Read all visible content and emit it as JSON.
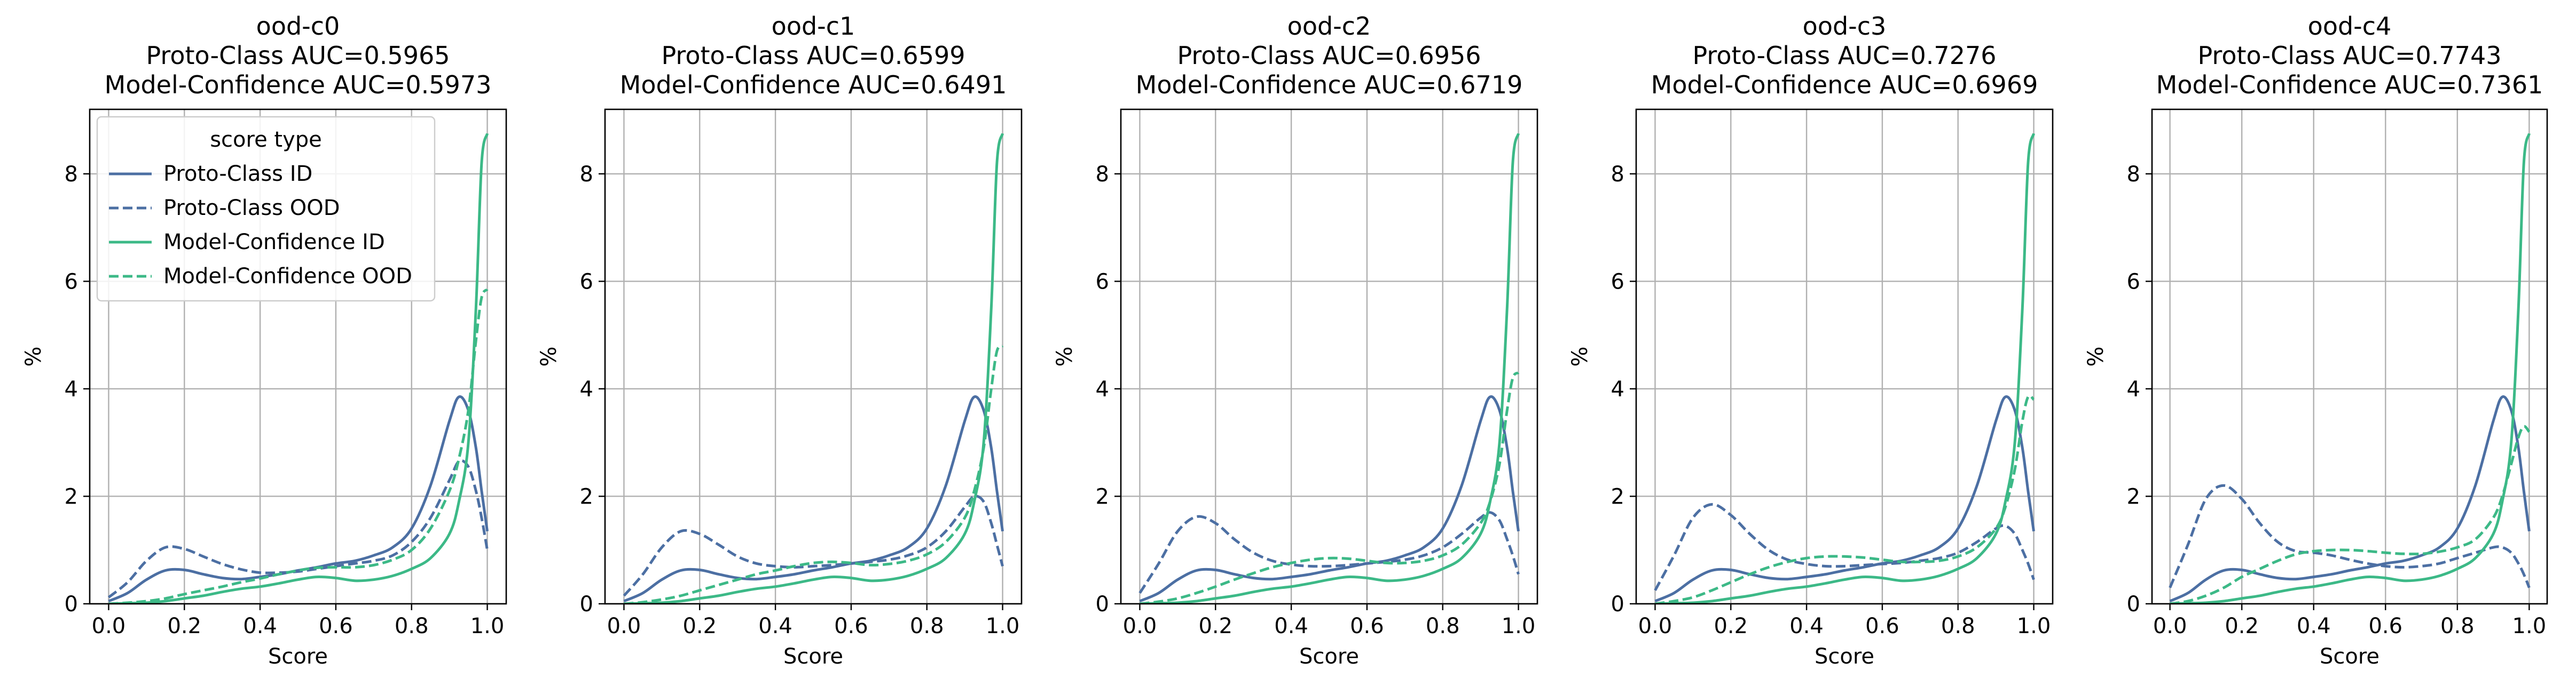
{
  "figure": {
    "legend": {
      "title": "score type",
      "entries": [
        "Proto-Class ID",
        "Proto-Class OOD",
        "Model-Confidence ID",
        "Model-Confidence OOD"
      ]
    }
  },
  "chart_data": [
    {
      "type": "line",
      "title": "ood-c0\nProto-Class AUC=0.5965\nModel-Confidence AUC=0.5973",
      "xlabel": "Score",
      "ylabel": "%",
      "xlim": [
        -0.05,
        1.05
      ],
      "ylim": [
        0,
        9.2
      ],
      "xticks": [
        "0.0",
        "0.2",
        "0.4",
        "0.6",
        "0.8",
        "1.0"
      ],
      "yticks": [
        "0",
        "2",
        "4",
        "6",
        "8"
      ],
      "grid": true,
      "legend": "upper-left",
      "x": [
        0.0,
        0.05,
        0.1,
        0.15,
        0.2,
        0.25,
        0.3,
        0.35,
        0.4,
        0.45,
        0.5,
        0.55,
        0.6,
        0.65,
        0.7,
        0.75,
        0.8,
        0.85,
        0.9,
        0.925,
        0.95,
        0.97,
        0.985,
        1.0
      ],
      "series": [
        {
          "name": "Proto-Class ID",
          "color": "#4c6fa3",
          "dash": "solid",
          "values": [
            0.05,
            0.2,
            0.45,
            0.62,
            0.63,
            0.55,
            0.48,
            0.46,
            0.5,
            0.55,
            0.62,
            0.68,
            0.75,
            0.8,
            0.9,
            1.05,
            1.4,
            2.2,
            3.4,
            3.85,
            3.6,
            2.9,
            2.1,
            1.35
          ]
        },
        {
          "name": "Proto-Class OOD",
          "color": "#4c6fa3",
          "dash": "dashed",
          "values": [
            0.12,
            0.4,
            0.8,
            1.05,
            1.02,
            0.88,
            0.74,
            0.64,
            0.58,
            0.58,
            0.6,
            0.65,
            0.7,
            0.75,
            0.8,
            0.9,
            1.15,
            1.6,
            2.3,
            2.65,
            2.55,
            2.1,
            1.6,
            1.0
          ]
        },
        {
          "name": "Model-Confidence ID",
          "color": "#3cb987",
          "dash": "solid",
          "values": [
            0.0,
            0.01,
            0.02,
            0.05,
            0.1,
            0.15,
            0.22,
            0.28,
            0.32,
            0.38,
            0.45,
            0.5,
            0.48,
            0.43,
            0.45,
            0.52,
            0.65,
            0.85,
            1.3,
            1.9,
            3.0,
            5.5,
            8.2,
            8.75
          ]
        },
        {
          "name": "Model-Confidence OOD",
          "color": "#3cb987",
          "dash": "dashed",
          "values": [
            0.0,
            0.02,
            0.05,
            0.1,
            0.18,
            0.25,
            0.32,
            0.4,
            0.47,
            0.55,
            0.62,
            0.67,
            0.68,
            0.68,
            0.72,
            0.82,
            1.0,
            1.4,
            2.1,
            2.7,
            3.6,
            4.9,
            5.7,
            5.85
          ]
        }
      ]
    },
    {
      "type": "line",
      "title": "ood-c1\nProto-Class AUC=0.6599\nModel-Confidence AUC=0.6491",
      "xlabel": "Score",
      "ylabel": "%",
      "xlim": [
        -0.05,
        1.05
      ],
      "ylim": [
        0,
        9.2
      ],
      "xticks": [
        "0.0",
        "0.2",
        "0.4",
        "0.6",
        "0.8",
        "1.0"
      ],
      "yticks": [
        "0",
        "2",
        "4",
        "6",
        "8"
      ],
      "grid": true,
      "x": [
        0.0,
        0.05,
        0.1,
        0.15,
        0.2,
        0.25,
        0.3,
        0.35,
        0.4,
        0.45,
        0.5,
        0.55,
        0.6,
        0.65,
        0.7,
        0.75,
        0.8,
        0.85,
        0.9,
        0.925,
        0.95,
        0.97,
        0.985,
        1.0
      ],
      "series": [
        {
          "name": "Proto-Class ID",
          "color": "#4c6fa3",
          "dash": "solid",
          "values": [
            0.05,
            0.2,
            0.45,
            0.62,
            0.63,
            0.55,
            0.48,
            0.46,
            0.5,
            0.55,
            0.62,
            0.68,
            0.75,
            0.8,
            0.9,
            1.05,
            1.4,
            2.2,
            3.4,
            3.85,
            3.6,
            2.9,
            2.1,
            1.35
          ]
        },
        {
          "name": "Proto-Class OOD",
          "color": "#4c6fa3",
          "dash": "dashed",
          "values": [
            0.15,
            0.55,
            1.05,
            1.35,
            1.3,
            1.1,
            0.88,
            0.75,
            0.7,
            0.68,
            0.7,
            0.72,
            0.75,
            0.78,
            0.82,
            0.9,
            1.05,
            1.35,
            1.8,
            2.0,
            1.9,
            1.5,
            1.1,
            0.7
          ]
        },
        {
          "name": "Model-Confidence ID",
          "color": "#3cb987",
          "dash": "solid",
          "values": [
            0.0,
            0.01,
            0.02,
            0.05,
            0.1,
            0.15,
            0.22,
            0.28,
            0.32,
            0.38,
            0.45,
            0.5,
            0.48,
            0.43,
            0.45,
            0.52,
            0.65,
            0.85,
            1.3,
            1.9,
            3.0,
            5.5,
            8.2,
            8.75
          ]
        },
        {
          "name": "Model-Confidence OOD",
          "color": "#3cb987",
          "dash": "dashed",
          "values": [
            0.0,
            0.03,
            0.08,
            0.15,
            0.25,
            0.35,
            0.45,
            0.55,
            0.62,
            0.7,
            0.76,
            0.78,
            0.76,
            0.72,
            0.74,
            0.8,
            0.92,
            1.15,
            1.6,
            2.1,
            2.9,
            4.0,
            4.7,
            4.8
          ]
        }
      ]
    },
    {
      "type": "line",
      "title": "ood-c2\nProto-Class AUC=0.6956\nModel-Confidence AUC=0.6719",
      "xlabel": "Score",
      "ylabel": "%",
      "xlim": [
        -0.05,
        1.05
      ],
      "ylim": [
        0,
        9.2
      ],
      "xticks": [
        "0.0",
        "0.2",
        "0.4",
        "0.6",
        "0.8",
        "1.0"
      ],
      "yticks": [
        "0",
        "2",
        "4",
        "6",
        "8"
      ],
      "grid": true,
      "x": [
        0.0,
        0.05,
        0.1,
        0.15,
        0.2,
        0.25,
        0.3,
        0.35,
        0.4,
        0.45,
        0.5,
        0.55,
        0.6,
        0.65,
        0.7,
        0.75,
        0.8,
        0.85,
        0.9,
        0.925,
        0.95,
        0.97,
        0.985,
        1.0
      ],
      "series": [
        {
          "name": "Proto-Class ID",
          "color": "#4c6fa3",
          "dash": "solid",
          "values": [
            0.05,
            0.2,
            0.45,
            0.62,
            0.63,
            0.55,
            0.48,
            0.46,
            0.5,
            0.55,
            0.62,
            0.68,
            0.75,
            0.8,
            0.9,
            1.05,
            1.4,
            2.2,
            3.4,
            3.85,
            3.6,
            2.9,
            2.1,
            1.35
          ]
        },
        {
          "name": "Proto-Class OOD",
          "color": "#4c6fa3",
          "dash": "dashed",
          "values": [
            0.2,
            0.75,
            1.35,
            1.62,
            1.5,
            1.2,
            0.95,
            0.8,
            0.73,
            0.7,
            0.7,
            0.72,
            0.75,
            0.78,
            0.82,
            0.9,
            1.05,
            1.3,
            1.6,
            1.7,
            1.55,
            1.2,
            0.9,
            0.55
          ]
        },
        {
          "name": "Model-Confidence ID",
          "color": "#3cb987",
          "dash": "solid",
          "values": [
            0.0,
            0.01,
            0.02,
            0.05,
            0.1,
            0.15,
            0.22,
            0.28,
            0.32,
            0.38,
            0.45,
            0.5,
            0.48,
            0.43,
            0.45,
            0.52,
            0.65,
            0.85,
            1.3,
            1.9,
            3.0,
            5.5,
            8.2,
            8.75
          ]
        },
        {
          "name": "Model-Confidence OOD",
          "color": "#3cb987",
          "dash": "dashed",
          "values": [
            0.0,
            0.04,
            0.1,
            0.2,
            0.32,
            0.45,
            0.57,
            0.68,
            0.76,
            0.82,
            0.85,
            0.84,
            0.8,
            0.76,
            0.76,
            0.8,
            0.9,
            1.1,
            1.5,
            1.9,
            2.6,
            3.6,
            4.2,
            4.3
          ]
        }
      ]
    },
    {
      "type": "line",
      "title": "ood-c3\nProto-Class AUC=0.7276\nModel-Confidence AUC=0.6969",
      "xlabel": "Score",
      "ylabel": "%",
      "xlim": [
        -0.05,
        1.05
      ],
      "ylim": [
        0,
        9.2
      ],
      "xticks": [
        "0.0",
        "0.2",
        "0.4",
        "0.6",
        "0.8",
        "1.0"
      ],
      "yticks": [
        "0",
        "2",
        "4",
        "6",
        "8"
      ],
      "grid": true,
      "x": [
        0.0,
        0.05,
        0.1,
        0.15,
        0.2,
        0.25,
        0.3,
        0.35,
        0.4,
        0.45,
        0.5,
        0.55,
        0.6,
        0.65,
        0.7,
        0.75,
        0.8,
        0.85,
        0.9,
        0.925,
        0.95,
        0.97,
        0.985,
        1.0
      ],
      "series": [
        {
          "name": "Proto-Class ID",
          "color": "#4c6fa3",
          "dash": "solid",
          "values": [
            0.05,
            0.2,
            0.45,
            0.62,
            0.63,
            0.55,
            0.48,
            0.46,
            0.5,
            0.55,
            0.62,
            0.68,
            0.75,
            0.8,
            0.9,
            1.05,
            1.4,
            2.2,
            3.4,
            3.85,
            3.6,
            2.9,
            2.1,
            1.35
          ]
        },
        {
          "name": "Proto-Class OOD",
          "color": "#4c6fa3",
          "dash": "dashed",
          "values": [
            0.25,
            0.9,
            1.6,
            1.85,
            1.65,
            1.3,
            1.0,
            0.82,
            0.74,
            0.7,
            0.7,
            0.72,
            0.74,
            0.76,
            0.8,
            0.85,
            0.95,
            1.15,
            1.4,
            1.45,
            1.3,
            1.0,
            0.75,
            0.45
          ]
        },
        {
          "name": "Model-Confidence ID",
          "color": "#3cb987",
          "dash": "solid",
          "values": [
            0.0,
            0.01,
            0.02,
            0.05,
            0.1,
            0.15,
            0.22,
            0.28,
            0.32,
            0.38,
            0.45,
            0.5,
            0.48,
            0.43,
            0.45,
            0.52,
            0.65,
            0.85,
            1.3,
            1.9,
            3.0,
            5.5,
            8.2,
            8.75
          ]
        },
        {
          "name": "Model-Confidence OOD",
          "color": "#3cb987",
          "dash": "dashed",
          "values": [
            0.0,
            0.05,
            0.12,
            0.25,
            0.4,
            0.55,
            0.68,
            0.78,
            0.85,
            0.88,
            0.88,
            0.86,
            0.82,
            0.78,
            0.78,
            0.8,
            0.88,
            1.05,
            1.4,
            1.8,
            2.5,
            3.4,
            3.85,
            3.8
          ]
        }
      ]
    },
    {
      "type": "line",
      "title": "ood-c4\nProto-Class AUC=0.7743\nModel-Confidence AUC=0.7361",
      "xlabel": "Score",
      "ylabel": "%",
      "xlim": [
        -0.05,
        1.05
      ],
      "ylim": [
        0,
        9.2
      ],
      "xticks": [
        "0.0",
        "0.2",
        "0.4",
        "0.6",
        "0.8",
        "1.0"
      ],
      "yticks": [
        "0",
        "2",
        "4",
        "6",
        "8"
      ],
      "grid": true,
      "x": [
        0.0,
        0.05,
        0.1,
        0.15,
        0.2,
        0.25,
        0.3,
        0.35,
        0.4,
        0.45,
        0.5,
        0.55,
        0.6,
        0.65,
        0.7,
        0.75,
        0.8,
        0.85,
        0.9,
        0.925,
        0.95,
        0.97,
        0.985,
        1.0
      ],
      "series": [
        {
          "name": "Proto-Class ID",
          "color": "#4c6fa3",
          "dash": "solid",
          "values": [
            0.05,
            0.2,
            0.45,
            0.62,
            0.63,
            0.55,
            0.48,
            0.46,
            0.5,
            0.55,
            0.62,
            0.68,
            0.75,
            0.8,
            0.9,
            1.05,
            1.4,
            2.2,
            3.4,
            3.85,
            3.6,
            2.9,
            2.1,
            1.35
          ]
        },
        {
          "name": "Proto-Class OOD",
          "color": "#4c6fa3",
          "dash": "dashed",
          "values": [
            0.3,
            1.1,
            1.95,
            2.2,
            1.95,
            1.5,
            1.15,
            0.98,
            0.95,
            0.9,
            0.82,
            0.75,
            0.7,
            0.68,
            0.7,
            0.75,
            0.85,
            0.95,
            1.05,
            1.05,
            0.95,
            0.75,
            0.55,
            0.3
          ]
        },
        {
          "name": "Model-Confidence ID",
          "color": "#3cb987",
          "dash": "solid",
          "values": [
            0.0,
            0.01,
            0.02,
            0.05,
            0.1,
            0.15,
            0.22,
            0.28,
            0.32,
            0.38,
            0.45,
            0.5,
            0.48,
            0.43,
            0.45,
            0.52,
            0.65,
            0.85,
            1.3,
            1.9,
            3.0,
            5.5,
            8.2,
            8.75
          ]
        },
        {
          "name": "Model-Confidence OOD",
          "color": "#3cb987",
          "dash": "dashed",
          "values": [
            0.0,
            0.05,
            0.15,
            0.3,
            0.5,
            0.65,
            0.8,
            0.92,
            0.98,
            1.0,
            1.0,
            0.98,
            0.95,
            0.93,
            0.93,
            0.97,
            1.05,
            1.2,
            1.6,
            2.0,
            2.6,
            3.1,
            3.3,
            3.2
          ]
        }
      ]
    }
  ]
}
